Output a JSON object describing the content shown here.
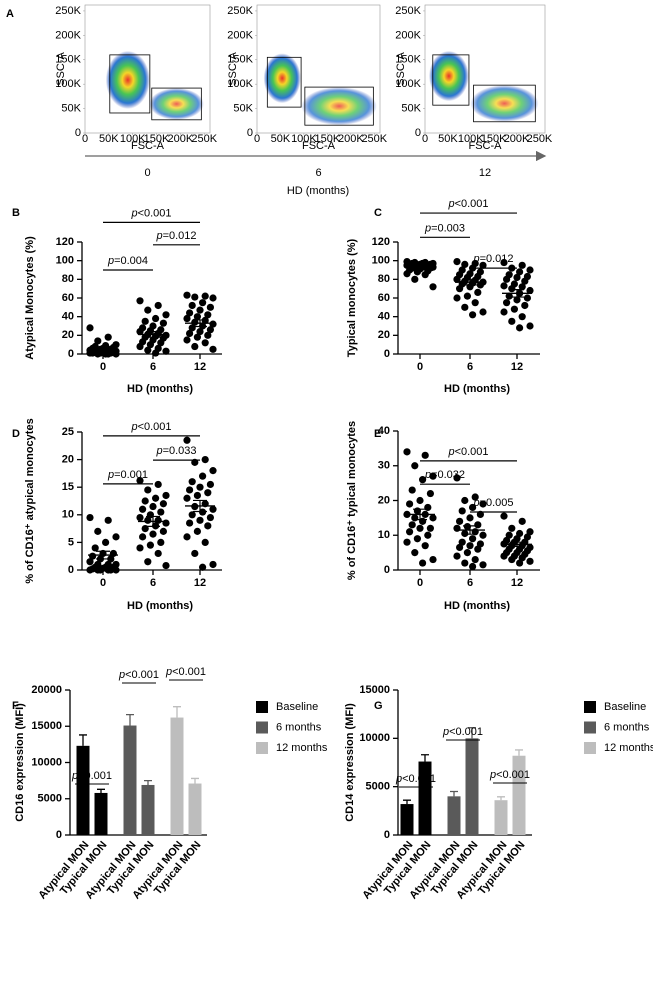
{
  "chart_data": [
    {
      "type": "flow",
      "panel_label": "A",
      "x_label": "FSC-A",
      "y_label": "SSC-A",
      "xlim": [
        0,
        262144
      ],
      "ylim": [
        0,
        262144
      ],
      "xticks": [
        {
          "value": 0,
          "label": "0"
        },
        {
          "value": 50000,
          "label": "50K"
        },
        {
          "value": 100000,
          "label": "100K"
        },
        {
          "value": 150000,
          "label": "150K"
        },
        {
          "value": 200000,
          "label": "200K"
        },
        {
          "value": 250000,
          "label": "250K"
        }
      ],
      "yticks": [
        {
          "value": 0,
          "label": "0"
        },
        {
          "value": 50000,
          "label": "50K"
        },
        {
          "value": 100000,
          "label": "100K"
        },
        {
          "value": 150000,
          "label": "150K"
        },
        {
          "value": 200000,
          "label": "200K"
        },
        {
          "value": 250000,
          "label": "250K"
        }
      ],
      "plots": [
        {
          "gates": [
            [
              52000,
              136000,
              41000,
              160000
            ],
            [
              140000,
              244000,
              27000,
              92000
            ]
          ]
        },
        {
          "gates": [
            [
              22000,
              94000,
              53000,
              155000
            ],
            [
              102000,
              248000,
              16000,
              94000
            ]
          ]
        },
        {
          "gates": [
            [
              17000,
              96000,
              57000,
              160000
            ],
            [
              106000,
              241000,
              23000,
              98000
            ]
          ]
        }
      ],
      "categories": [
        "0",
        "6",
        "12"
      ],
      "x_title": "HD (months)"
    },
    {
      "type": "dot",
      "panel_label": "B",
      "y_title": "Atypical Monocytes (%)",
      "x_title": "HD (months)",
      "categories": [
        "0",
        "6",
        "12"
      ],
      "ylim": [
        0,
        120
      ],
      "yticks": [
        0,
        20,
        40,
        60,
        80,
        100,
        120
      ],
      "values": [
        [
          28,
          18,
          14,
          10,
          9,
          8,
          7,
          6,
          6,
          5,
          5,
          4,
          4,
          3,
          3,
          3,
          2,
          2,
          2,
          1,
          1,
          1,
          1,
          0,
          0,
          0,
          0
        ],
        [
          57,
          52,
          47,
          42,
          38,
          35,
          33,
          30,
          28,
          26,
          25,
          24,
          22,
          21,
          20,
          19,
          18,
          17,
          15,
          13,
          12,
          10,
          8,
          6,
          4,
          3,
          1
        ],
        [
          63,
          62,
          61,
          60,
          55,
          52,
          50,
          47,
          44,
          42,
          40,
          38,
          36,
          34,
          32,
          30,
          28,
          26,
          24,
          22,
          20,
          18,
          15,
          12,
          8,
          5
        ]
      ],
      "mean": [
        4,
        21,
        33
      ],
      "sem": [
        1.2,
        3,
        3.5
      ],
      "brackets": [
        {
          "from": 0,
          "to": 1,
          "y": 90,
          "label": "p=0.004"
        },
        {
          "from": 1,
          "to": 2,
          "y": 117,
          "label": "p=0.012"
        },
        {
          "from": 0,
          "to": 2,
          "y": 141,
          "label": "p<0.001"
        }
      ]
    },
    {
      "type": "dot",
      "panel_label": "C",
      "y_title": "Typical monocytes (%)",
      "x_title": "HD (months)",
      "categories": [
        "0",
        "6",
        "12"
      ],
      "ylim": [
        0,
        120
      ],
      "yticks": [
        0,
        20,
        40,
        60,
        80,
        100,
        120
      ],
      "values": [
        [
          99,
          98,
          98,
          97,
          97,
          97,
          96,
          96,
          96,
          95,
          95,
          95,
          94,
          94,
          93,
          93,
          92,
          92,
          91,
          90,
          89,
          88,
          86,
          85,
          80,
          72,
          97
        ],
        [
          99,
          97,
          96,
          95,
          92,
          90,
          88,
          86,
          85,
          83,
          82,
          80,
          79,
          78,
          77,
          76,
          75,
          74,
          72,
          70,
          66,
          62,
          60,
          55,
          50,
          45,
          42
        ],
        [
          98,
          95,
          92,
          90,
          88,
          85,
          83,
          82,
          80,
          78,
          75,
          73,
          72,
          70,
          68,
          65,
          62,
          60,
          58,
          55,
          52,
          48,
          45,
          40,
          35,
          30,
          28
        ]
      ],
      "mean": [
        95,
        77,
        65
      ],
      "sem": [
        1.2,
        3,
        4
      ],
      "brackets": [
        {
          "from": 0,
          "to": 1,
          "y": 125,
          "label": "p=0.003"
        },
        {
          "from": 1,
          "to": 2,
          "y": 92,
          "label": "p=0.012"
        },
        {
          "from": 0,
          "to": 2,
          "y": 151,
          "label": "p<0.001"
        }
      ]
    },
    {
      "type": "dot",
      "panel_label": "D",
      "y_title": "% of CD16⁺ atypical monocytes",
      "x_title": "HD (months)",
      "categories": [
        "0",
        "6",
        "12"
      ],
      "ylim": [
        0,
        25
      ],
      "yticks": [
        0,
        5,
        10,
        15,
        20,
        25
      ],
      "values": [
        [
          9.5,
          9,
          7,
          6,
          5,
          4,
          3,
          3,
          2.5,
          2,
          2,
          1.5,
          1,
          1,
          1,
          0.5,
          0.5,
          0.5,
          0.3,
          0.2,
          0,
          0,
          0,
          0,
          0,
          0
        ],
        [
          16.2,
          15.5,
          14.5,
          13.5,
          13,
          12.5,
          12,
          11.5,
          11,
          10.5,
          10,
          9.5,
          9,
          9,
          8.5,
          8,
          7.5,
          7,
          6.5,
          6,
          5,
          4.5,
          4,
          3,
          1.5,
          0.8
        ],
        [
          23.5,
          20,
          19.5,
          18,
          17,
          16,
          15.5,
          15,
          14.5,
          14,
          13.5,
          13,
          12,
          11.5,
          11,
          10.5,
          10,
          9.5,
          9,
          8.5,
          8,
          7,
          6,
          5,
          3,
          1,
          0.5
        ]
      ],
      "mean": [
        2.7,
        8.8,
        11.6
      ],
      "sem": [
        0.7,
        0.9,
        1
      ],
      "brackets": [
        {
          "from": 0,
          "to": 1,
          "y": 15.6,
          "label": "p=0.001"
        },
        {
          "from": 1,
          "to": 2,
          "y": 19.9,
          "label": "p=0.033"
        },
        {
          "from": 0,
          "to": 2,
          "y": 24.3,
          "label": "p<0.001"
        }
      ]
    },
    {
      "type": "dot",
      "panel_label": "E",
      "y_title": "% of CD16⁺ typical monocytes",
      "x_title": "HD (months)",
      "categories": [
        "0",
        "6",
        "12"
      ],
      "ylim": [
        0,
        40
      ],
      "yticks": [
        0,
        10,
        20,
        30,
        40
      ],
      "values": [
        [
          34,
          33,
          30,
          27,
          26,
          23,
          22,
          20,
          19,
          18,
          17,
          16,
          16,
          15,
          15,
          14,
          13,
          12,
          12,
          11,
          10,
          9,
          8,
          7,
          5,
          3,
          2
        ],
        [
          26.5,
          21,
          20,
          19,
          18,
          17,
          16,
          15,
          14,
          13,
          12.5,
          12,
          11,
          10.5,
          10,
          9,
          8,
          7.5,
          7,
          6.5,
          6,
          5,
          4,
          3,
          2,
          1.5,
          1
        ],
        [
          15.5,
          14,
          12,
          11,
          10.5,
          10,
          9.5,
          9,
          8.5,
          8,
          8,
          7.5,
          7,
          7,
          6.5,
          6,
          6,
          5.5,
          5,
          5,
          4.5,
          4,
          4,
          3.5,
          3,
          2.5,
          2
        ]
      ],
      "mean": [
        16,
        11.5,
        7.4
      ],
      "sem": [
        1.5,
        1.2,
        0.6
      ],
      "brackets": [
        {
          "from": 0,
          "to": 1,
          "y": 24.7,
          "label": "p=0.032"
        },
        {
          "from": 1,
          "to": 2,
          "y": 16.7,
          "label": "p=0.005"
        },
        {
          "from": 0,
          "to": 2,
          "y": 31.4,
          "label": "p<0.001"
        }
      ]
    },
    {
      "type": "bar",
      "panel_label": "F",
      "y_title": "CD16 expression (MFI)",
      "categories": [
        "Atypical MON",
        "Typical MON"
      ],
      "ylim": [
        0,
        20000
      ],
      "yticks": [
        0,
        5000,
        10000,
        15000,
        20000
      ],
      "series": [
        {
          "name": "Baseline",
          "color": "#000000",
          "values": [
            12300,
            5800
          ],
          "errors": [
            1500,
            500
          ]
        },
        {
          "name": "6 months",
          "color": "#5a5a5a",
          "values": [
            15100,
            6900
          ],
          "errors": [
            1500,
            600
          ]
        },
        {
          "name": "12 months",
          "color": "#bdbdbd",
          "values": [
            16200,
            7100
          ],
          "errors": [
            1500,
            700
          ]
        }
      ],
      "brackets": [
        {
          "y": 7034,
          "label": "p<0.001"
        },
        {
          "y": 20966,
          "label": "p<0.001"
        },
        {
          "y": 21379,
          "label": "p<0.001"
        }
      ]
    },
    {
      "type": "bar",
      "panel_label": "G",
      "y_title": "CD14 expression (MFI)",
      "categories": [
        "Atypical MON",
        "Typical MON"
      ],
      "ylim": [
        0,
        15000
      ],
      "yticks": [
        0,
        5000,
        10000,
        15000
      ],
      "series": [
        {
          "name": "Baseline",
          "color": "#000000",
          "values": [
            3200,
            7600
          ],
          "errors": [
            400,
            700
          ]
        },
        {
          "name": "6 months",
          "color": "#5a5a5a",
          "values": [
            4000,
            10000
          ],
          "errors": [
            500,
            1100
          ]
        },
        {
          "name": "12 months",
          "color": "#bdbdbd",
          "values": [
            3600,
            8200
          ],
          "errors": [
            350,
            600
          ]
        }
      ],
      "brackets": [
        {
          "y": 4966,
          "label": "p<0.001"
        },
        {
          "y": 9828,
          "label": "p<0.001"
        },
        {
          "y": 5379,
          "label": "p<0.001"
        }
      ]
    }
  ]
}
